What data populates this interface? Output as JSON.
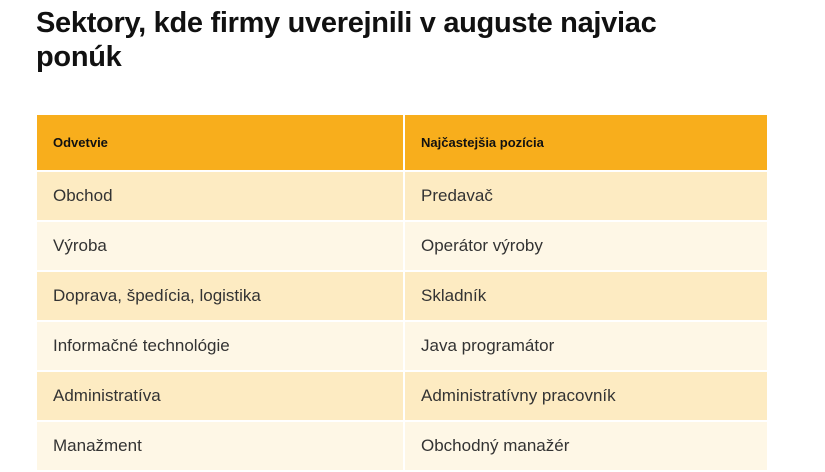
{
  "chart_data": {
    "type": "table",
    "title": "Sektory, kde firmy uverejnili v auguste najviac ponúk",
    "columns": [
      "Odvetvie",
      "Najčastejšia pozícia"
    ],
    "rows": [
      [
        "Obchod",
        "Predavač"
      ],
      [
        "Výroba",
        "Operátor výroby"
      ],
      [
        "Doprava, špedícia, logistika",
        "Skladník"
      ],
      [
        "Informačné technológie",
        "Java programátor"
      ],
      [
        "Administratíva",
        "Administratívny pracovník"
      ],
      [
        "Manažment",
        "Obchodný manažér"
      ]
    ],
    "colors": {
      "header": "#F8AE1C",
      "row_odd": "#FDEBC2",
      "row_even": "#FEF7E6"
    }
  }
}
